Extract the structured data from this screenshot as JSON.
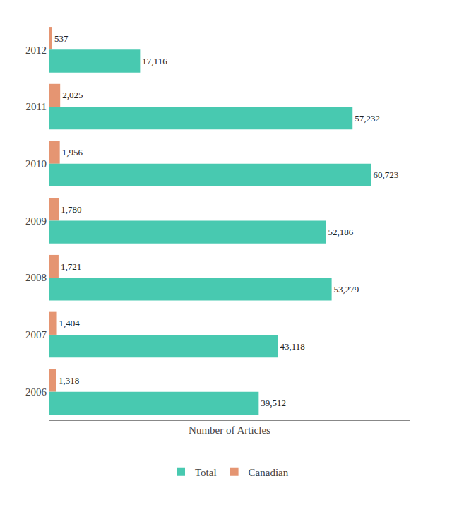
{
  "chart_data": {
    "type": "bar",
    "orientation": "horizontal",
    "xlabel": "Number of Articles",
    "categories": [
      "2012",
      "2011",
      "2010",
      "2009",
      "2008",
      "2007",
      "2006"
    ],
    "series": [
      {
        "name": "Total",
        "color": "#48C9B0",
        "values": [
          17116,
          57232,
          60723,
          52186,
          53279,
          43118,
          39512
        ],
        "value_labels": [
          "17,116",
          "57,232",
          "60,723",
          "52,186",
          "53,279",
          "43,118",
          "39,512"
        ]
      },
      {
        "name": "Canadian",
        "color": "#E59572",
        "values": [
          537,
          2025,
          1956,
          1780,
          1721,
          1404,
          1318
        ],
        "value_labels": [
          "537",
          "2,025",
          "1,956",
          "1,780",
          "1,721",
          "1,404",
          "1,318"
        ]
      }
    ],
    "xlim": [
      0,
      68000
    ],
    "xticks": [],
    "grid": false,
    "legend": "bottom",
    "data_labels": true,
    "tick_labels": "y"
  }
}
